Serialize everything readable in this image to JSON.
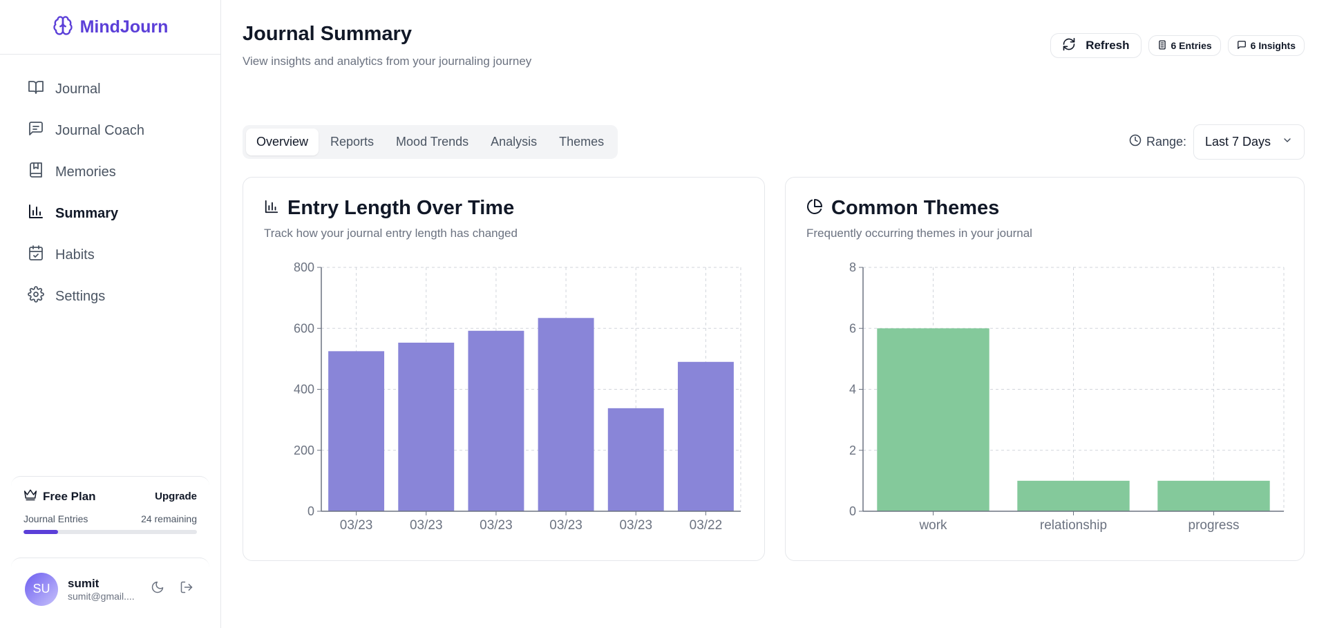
{
  "brand": {
    "name": "MindJourn",
    "logo_icon": "brain-icon",
    "accent": "#5b3fd8"
  },
  "sidebar": {
    "items": [
      {
        "label": "Journal",
        "icon": "book-open-icon"
      },
      {
        "label": "Journal Coach",
        "icon": "message-square-icon"
      },
      {
        "label": "Memories",
        "icon": "bookmark-book-icon"
      },
      {
        "label": "Summary",
        "icon": "bar-chart-icon",
        "active": true
      },
      {
        "label": "Habits",
        "icon": "calendar-check-icon"
      },
      {
        "label": "Settings",
        "icon": "gear-icon"
      }
    ],
    "plan": {
      "title": "Free Plan",
      "upgrade_label": "Upgrade",
      "entries_label": "Journal Entries",
      "remaining_label": "24 remaining",
      "usage_fraction": 0.2
    },
    "user": {
      "initials": "SU",
      "name": "sumit",
      "email": "sumit@gmail...."
    }
  },
  "header": {
    "title": "Journal Summary",
    "subtitle": "View insights and analytics from your journaling journey",
    "refresh_label": "Refresh",
    "entries_badge": "6 Entries",
    "insights_badge": "6 Insights"
  },
  "tabs": [
    {
      "label": "Overview",
      "active": true
    },
    {
      "label": "Reports"
    },
    {
      "label": "Mood Trends"
    },
    {
      "label": "Analysis"
    },
    {
      "label": "Themes"
    }
  ],
  "range": {
    "label": "Range:",
    "value": "Last 7 Days"
  },
  "cards": {
    "length": {
      "title": "Entry Length Over Time",
      "subtitle": "Track how your journal entry length has changed"
    },
    "themes": {
      "title": "Common Themes",
      "subtitle": "Frequently occurring themes in your journal"
    }
  },
  "chart_data": [
    {
      "type": "bar",
      "categories": [
        "03/23",
        "03/23",
        "03/23",
        "03/23",
        "03/23",
        "03/22"
      ],
      "values": [
        525,
        553,
        592,
        634,
        338,
        490
      ],
      "ylim": [
        0,
        800
      ],
      "yticks": [
        0,
        200,
        400,
        600,
        800
      ],
      "grid": true,
      "color": "#8985d8"
    },
    {
      "type": "bar",
      "categories": [
        "work",
        "relationship",
        "progress"
      ],
      "values": [
        6,
        1,
        1
      ],
      "ylim": [
        0,
        8
      ],
      "yticks": [
        0,
        2,
        4,
        6,
        8
      ],
      "grid": true,
      "color": "#84c99b"
    }
  ]
}
